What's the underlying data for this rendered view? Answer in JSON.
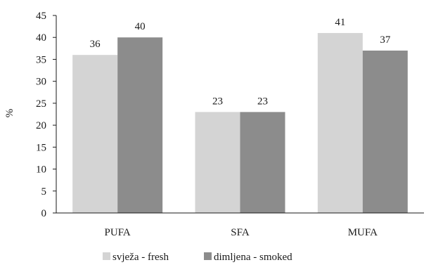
{
  "chart_data": {
    "type": "bar",
    "title": "",
    "xlabel": "",
    "ylabel": "%",
    "ylim": [
      0,
      45
    ],
    "yticks": [
      0,
      5,
      10,
      15,
      20,
      25,
      30,
      35,
      40,
      45
    ],
    "grid": false,
    "legend_position": "bottom",
    "categories": [
      "PUFA",
      "SFA",
      "MUFA"
    ],
    "series": [
      {
        "name": "svježa - fresh",
        "values": [
          36,
          23,
          41
        ],
        "color": "#d4d4d4"
      },
      {
        "name": "dimljena - smoked",
        "values": [
          40,
          23,
          37
        ],
        "color": "#8c8c8c"
      }
    ]
  }
}
